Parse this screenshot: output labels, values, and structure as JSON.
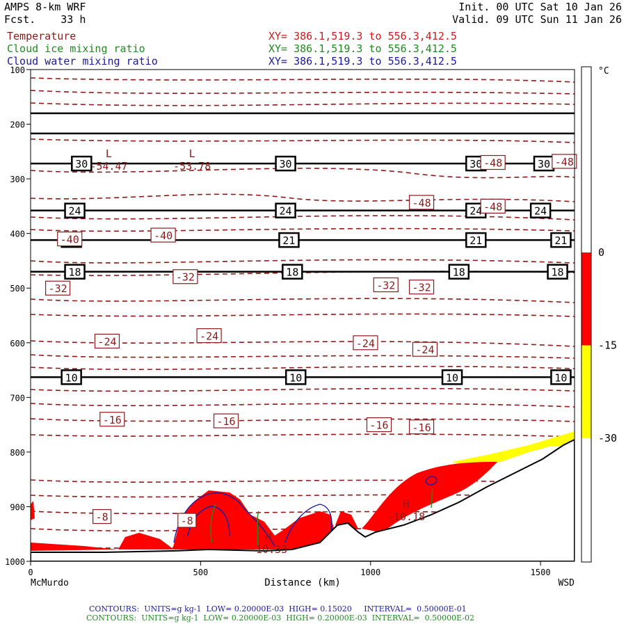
{
  "header": {
    "model": "AMPS 8-km WRF",
    "forecast": "Fcst.    33 h",
    "init": "Init. 00 UTC Sat 10 Jan 26",
    "valid": "Valid. 09 UTC Sun 11 Jan 26",
    "fields": [
      {
        "name": "Temperature",
        "xy": "XY= 386.1,519.3 to 556.3,412.5",
        "color": "#8b1a1a"
      },
      {
        "name": "Cloud ice mixing ratio",
        "xy": "XY= 386.1,519.3 to 556.3,412.5",
        "color": "#1f8a1f"
      },
      {
        "name": "Cloud water mixing ratio",
        "xy": "XY= 386.1,519.3 to 556.3,412.5",
        "color": "#1a1aa0"
      }
    ]
  },
  "footer": {
    "blue_line": "CONTOURS:  UNITS=g kg-1  LOW= 0.20000E-03  HIGH= 0.15020     INTERVAL=  0.50000E-01",
    "green_line": "CONTOURS:  UNITS=g kg-1  LOW= 0.20000E-03  HIGH= 0.20000E-03  INTERVAL=  0.50000E-02"
  },
  "chart_data": {
    "type": "cross-section",
    "x_axis": {
      "label": "Distance (km)",
      "range": [
        0,
        1600
      ],
      "ticks": [
        0,
        500,
        1000,
        1500
      ],
      "left_label": "McMurdo",
      "right_label": "WSD"
    },
    "y_axis": {
      "label": "",
      "range": [
        100,
        1000
      ],
      "inverted": true,
      "ticks": [
        100,
        200,
        300,
        400,
        500,
        600,
        700,
        800,
        900,
        1000
      ]
    },
    "colorbar": {
      "unit": "°C",
      "stops": [
        {
          "from": 30,
          "to": 0,
          "color": "#ffffff"
        },
        {
          "from": 0,
          "to": -15,
          "color": "#ff0000"
        },
        {
          "from": -15,
          "to": -30,
          "color": "#ffff00"
        },
        {
          "from": -30,
          "to": -50,
          "color": "#ffffff"
        }
      ],
      "labels": [
        "0",
        "-15",
        "-30"
      ]
    },
    "level_lines": [
      {
        "pressure": 180,
        "label": null
      },
      {
        "pressure": 217,
        "label": null
      },
      {
        "pressure": 272,
        "label": "30",
        "label_x": [
          150,
          750,
          1310,
          1510
        ]
      },
      {
        "pressure": 358,
        "label": "24",
        "label_x": [
          130,
          750,
          1310,
          1500
        ]
      },
      {
        "pressure": 412,
        "label": "21",
        "label_x": [
          120,
          760,
          1310,
          1560
        ]
      },
      {
        "pressure": 470,
        "label": "18",
        "label_x": [
          130,
          770,
          1260,
          1550
        ]
      },
      {
        "pressure": 663,
        "label": "10",
        "label_x": [
          120,
          780,
          1240,
          1560
        ]
      }
    ],
    "temperature_labels": [
      {
        "x": 115,
        "p": 410,
        "v": "-40"
      },
      {
        "x": 390,
        "p": 403,
        "v": "-40"
      },
      {
        "x": 1360,
        "p": 270,
        "v": "-48"
      },
      {
        "x": 1570,
        "p": 268,
        "v": "-48"
      },
      {
        "x": 1150,
        "p": 343,
        "v": "-48"
      },
      {
        "x": 1360,
        "p": 350,
        "v": "-48"
      },
      {
        "x": 80,
        "p": 500,
        "v": "-32"
      },
      {
        "x": 455,
        "p": 479,
        "v": "-32"
      },
      {
        "x": 1045,
        "p": 494,
        "v": "-32"
      },
      {
        "x": 1150,
        "p": 498,
        "v": "-32"
      },
      {
        "x": 225,
        "p": 597,
        "v": "-24"
      },
      {
        "x": 525,
        "p": 587,
        "v": "-24"
      },
      {
        "x": 985,
        "p": 600,
        "v": "-24"
      },
      {
        "x": 1160,
        "p": 612,
        "v": "-24"
      },
      {
        "x": 240,
        "p": 740,
        "v": "-16"
      },
      {
        "x": 575,
        "p": 743,
        "v": "-16"
      },
      {
        "x": 1025,
        "p": 750,
        "v": "-16"
      },
      {
        "x": 1150,
        "p": 754,
        "v": "-16"
      },
      {
        "x": 210,
        "p": 918,
        "v": "-8"
      },
      {
        "x": 460,
        "p": 925,
        "v": "-8"
      }
    ],
    "extrema": [
      {
        "type": "L",
        "x": 230,
        "p": 283,
        "value": "-54.47"
      },
      {
        "type": "L",
        "x": 475,
        "p": 283,
        "value": "-53.78"
      },
      {
        "type": "H",
        "x": 700,
        "p": 985,
        "value": "-10.33"
      },
      {
        "type": "H",
        "x": 1105,
        "p": 925,
        "value": "-10.18"
      }
    ]
  }
}
